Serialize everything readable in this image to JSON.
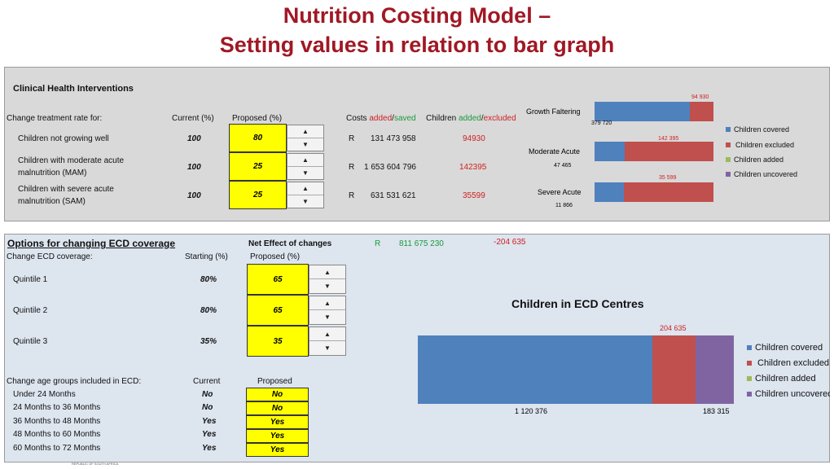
{
  "title": {
    "line1": "Nutrition Costing Model –",
    "line2": "Setting values in relation to bar graph"
  },
  "clinical": {
    "heading": "Clinical Health Interventions",
    "col_change": "Change treatment rate for:",
    "col_current": "Current (%)",
    "col_proposed": "Proposed (%)",
    "col_costs": "Costs ",
    "costs_added": "added",
    "costs_saved": "saved",
    "col_children": "Children ",
    "children_added": "added",
    "children_excluded": "excluded",
    "slash": "/",
    "rows": [
      {
        "label1": "Children not growing well",
        "label2": "",
        "current": "100",
        "proposed": "80",
        "r": "R",
        "cost": "131 473 958",
        "children": "94930"
      },
      {
        "label1": "Children with moderate acute",
        "label2": "malnutrition (MAM)",
        "current": "100",
        "proposed": "25",
        "r": "R",
        "cost": "1 653 604 796",
        "children": "142395"
      },
      {
        "label1": "Children with severe acute",
        "label2": "malnutrition (SAM)",
        "current": "100",
        "proposed": "25",
        "r": "R",
        "cost": "631 531 621",
        "children": "35599"
      }
    ]
  },
  "ecd": {
    "heading": "Options for changing ECD coverage",
    "net_label": "Net Effect of changes",
    "net_r": "R",
    "net_value": "811 675 230",
    "net_children": "-204 635",
    "col_change": "Change ECD coverage:",
    "col_starting": "Starting (%)",
    "col_proposed": "Proposed (%)",
    "quintiles": [
      {
        "label": "Quintile 1",
        "starting": "80%",
        "proposed": "65"
      },
      {
        "label": "Quintile 2",
        "starting": "80%",
        "proposed": "65"
      },
      {
        "label": "Quintile 3",
        "starting": "35%",
        "proposed": "35"
      }
    ],
    "age_heading": "Change age groups included in ECD:",
    "age_current": "Current",
    "age_proposed": "Proposed",
    "ages": [
      {
        "label": "Under 24 Months",
        "current": "No",
        "proposed": "No"
      },
      {
        "label": "24 Months to 36 Months",
        "current": "No",
        "proposed": "No"
      },
      {
        "label": "36 Months to 48 Months",
        "current": "Yes",
        "proposed": "Yes"
      },
      {
        "label": "48 Months to 60 Months",
        "current": "Yes",
        "proposed": "Yes"
      },
      {
        "label": "60 Months to 72 Months",
        "current": "Yes",
        "proposed": "Yes"
      }
    ]
  },
  "footer_text": "REPUBLIC OF SOUTH AFRICA",
  "colors": {
    "covered": "#4f81bd",
    "excluded": "#c0504d",
    "added": "#9bbb59",
    "uncovered": "#8064a2",
    "yellow": "#ffff00"
  },
  "chart_data": [
    {
      "type": "bar",
      "orientation": "horizontal",
      "stacked": true,
      "categories": [
        "Growth Faltering",
        "Moderate Acute",
        "Severe Acute"
      ],
      "series": [
        {
          "name": "Children covered",
          "values": [
            379720,
            47465,
            11866
          ]
        },
        {
          "name": "Children excluded",
          "values": [
            94930,
            142395,
            35599
          ]
        },
        {
          "name": "Children added",
          "values": [
            0,
            0,
            0
          ]
        },
        {
          "name": "Children uncovered",
          "values": [
            0,
            0,
            0
          ]
        }
      ],
      "covered_labels": [
        "379 720",
        "47 465",
        "11 866"
      ],
      "excluded_labels": [
        "94 930",
        "142 395",
        "35 599"
      ],
      "legend_position": "right",
      "grid": false
    },
    {
      "type": "bar",
      "orientation": "horizontal",
      "stacked": true,
      "title": "Children in ECD Centres",
      "categories": [
        ""
      ],
      "series": [
        {
          "name": "Children covered",
          "values": [
            1120376
          ]
        },
        {
          "name": "Children excluded",
          "values": [
            204635
          ]
        },
        {
          "name": "Children added",
          "values": [
            0
          ]
        },
        {
          "name": "Children uncovered",
          "values": [
            183315
          ]
        }
      ],
      "labels": {
        "covered": "1 120 376",
        "excluded": "204 635",
        "uncovered": "183 315"
      },
      "legend_position": "right",
      "grid": false
    }
  ]
}
